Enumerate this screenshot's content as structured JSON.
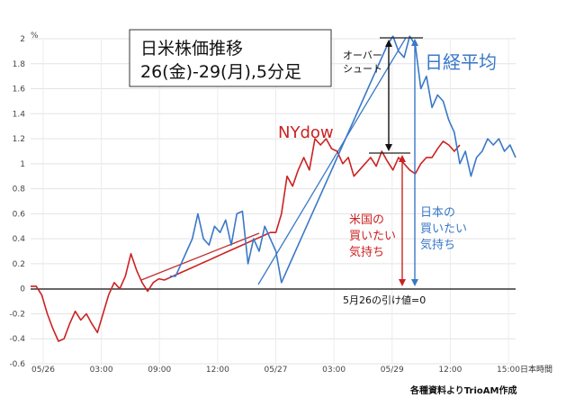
{
  "chart_data": {
    "type": "line",
    "title": "日米株価推移",
    "subtitle": "26(金)-29(月),5分足",
    "y_unit": "%",
    "ylim": [
      -0.6,
      2.0
    ],
    "y_ticks": [
      "2",
      "1.8",
      "1.6",
      "1.4",
      "1.2",
      "1",
      "0.8",
      "0.6",
      "0.4",
      "0.2",
      "0",
      "-0.2",
      "-0.4",
      "-0.6"
    ],
    "x_tick_labels": [
      "05/26",
      "03:00",
      "09:00",
      "12:00",
      "05/27",
      "03:00",
      "05/29",
      "12:00",
      "15:00"
    ],
    "x_axis_note": "日本時間",
    "credit": "各種資料よりTrioAM作成",
    "series": [
      {
        "name": "NYdow",
        "color": "#cc2222",
        "points": [
          [
            0,
            0.02
          ],
          [
            1,
            0.02
          ],
          [
            2,
            -0.05
          ],
          [
            3,
            -0.2
          ],
          [
            4,
            -0.32
          ],
          [
            5,
            -0.42
          ],
          [
            6,
            -0.4
          ],
          [
            7,
            -0.28
          ],
          [
            8,
            -0.18
          ],
          [
            9,
            -0.25
          ],
          [
            10,
            -0.2
          ],
          [
            11,
            -0.28
          ],
          [
            12,
            -0.35
          ],
          [
            13,
            -0.2
          ],
          [
            14,
            -0.05
          ],
          [
            15,
            0.05
          ],
          [
            16,
            0.0
          ],
          [
            17,
            0.1
          ],
          [
            18,
            0.28
          ],
          [
            19,
            0.15
          ],
          [
            20,
            0.05
          ],
          [
            21,
            -0.02
          ],
          [
            22,
            0.05
          ],
          [
            23,
            0.08
          ],
          [
            24,
            0.07
          ],
          [
            25,
            0.09
          ],
          [
            26,
            0.11
          ],
          [
            27,
            0.13
          ],
          [
            28,
            0.15
          ],
          [
            29,
            0.17
          ],
          [
            30,
            0.19
          ],
          [
            31,
            0.21
          ],
          [
            32,
            0.23
          ],
          [
            33,
            0.25
          ],
          [
            34,
            0.27
          ],
          [
            35,
            0.29
          ],
          [
            36,
            0.31
          ],
          [
            37,
            0.33
          ],
          [
            38,
            0.35
          ],
          [
            39,
            0.37
          ],
          [
            40,
            0.39
          ],
          [
            41,
            0.41
          ],
          [
            42,
            0.43
          ],
          [
            43,
            0.45
          ],
          [
            44,
            0.45
          ],
          [
            45,
            0.6
          ],
          [
            46,
            0.9
          ],
          [
            47,
            0.82
          ],
          [
            48,
            0.95
          ],
          [
            49,
            1.05
          ],
          [
            50,
            0.95
          ],
          [
            51,
            1.2
          ],
          [
            52,
            1.15
          ],
          [
            53,
            1.2
          ],
          [
            54,
            1.12
          ],
          [
            55,
            1.1
          ],
          [
            56,
            1.0
          ],
          [
            57,
            1.05
          ],
          [
            58,
            0.9
          ],
          [
            59,
            0.95
          ],
          [
            60,
            1.0
          ],
          [
            61,
            1.05
          ],
          [
            62,
            0.98
          ],
          [
            63,
            1.1
          ],
          [
            64,
            1.02
          ],
          [
            65,
            0.95
          ],
          [
            66,
            1.05
          ],
          [
            67,
            1.0
          ],
          [
            68,
            0.95
          ],
          [
            69,
            0.92
          ],
          [
            70,
            1.0
          ],
          [
            71,
            1.05
          ],
          [
            72,
            1.05
          ],
          [
            73,
            1.12
          ],
          [
            74,
            1.18
          ],
          [
            75,
            1.15
          ],
          [
            76,
            1.1
          ],
          [
            77,
            1.15
          ]
        ]
      },
      {
        "name": "日経平均",
        "color": "#3a78c8",
        "points": [
          [
            25,
            0.1
          ],
          [
            26,
            0.1
          ],
          [
            27,
            0.2
          ],
          [
            28,
            0.3
          ],
          [
            29,
            0.4
          ],
          [
            30,
            0.6
          ],
          [
            31,
            0.4
          ],
          [
            32,
            0.35
          ],
          [
            33,
            0.5
          ],
          [
            34,
            0.45
          ],
          [
            35,
            0.55
          ],
          [
            36,
            0.35
          ],
          [
            37,
            0.6
          ],
          [
            38,
            0.62
          ],
          [
            39,
            0.2
          ],
          [
            40,
            0.4
          ],
          [
            41,
            0.3
          ],
          [
            42,
            0.5
          ],
          [
            43,
            0.4
          ],
          [
            44,
            0.3
          ],
          [
            45,
            0.05
          ],
          [
            46,
            0.15
          ],
          [
            47,
            0.25
          ],
          [
            48,
            0.35
          ],
          [
            49,
            0.45
          ],
          [
            50,
            0.55
          ],
          [
            51,
            0.65
          ],
          [
            52,
            0.75
          ],
          [
            53,
            0.85
          ],
          [
            54,
            0.95
          ],
          [
            55,
            1.05
          ],
          [
            56,
            1.15
          ],
          [
            57,
            1.25
          ],
          [
            58,
            1.35
          ],
          [
            59,
            1.45
          ],
          [
            60,
            1.55
          ],
          [
            61,
            1.65
          ],
          [
            62,
            1.75
          ],
          [
            63,
            1.85
          ],
          [
            64,
            1.95
          ],
          [
            65,
            2.02
          ],
          [
            66,
            1.9
          ],
          [
            67,
            1.85
          ],
          [
            68,
            2.02
          ],
          [
            69,
            1.95
          ],
          [
            70,
            1.6
          ],
          [
            71,
            1.7
          ],
          [
            72,
            1.45
          ],
          [
            73,
            1.55
          ],
          [
            74,
            1.5
          ],
          [
            75,
            1.35
          ],
          [
            76,
            1.25
          ],
          [
            77,
            1.0
          ],
          [
            78,
            1.1
          ],
          [
            79,
            0.9
          ],
          [
            80,
            1.05
          ],
          [
            81,
            1.1
          ],
          [
            82,
            1.2
          ],
          [
            83,
            1.15
          ],
          [
            84,
            1.2
          ],
          [
            85,
            1.1
          ],
          [
            86,
            1.15
          ],
          [
            87,
            1.05
          ]
        ]
      }
    ],
    "annotations": [
      {
        "text": "オーバー\nシュート"
      },
      {
        "text": "米国の\n買いたい\n気持ち"
      },
      {
        "text": "日本の\n買いたい\n気持ち"
      },
      {
        "text": "5月26の引け値=0"
      }
    ]
  }
}
